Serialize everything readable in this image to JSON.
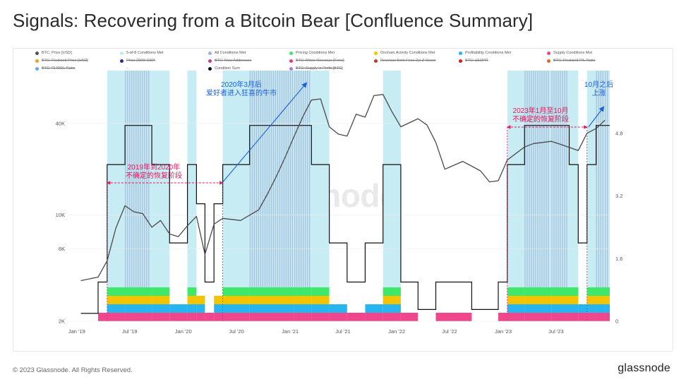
{
  "title": "Signals: Recovering from a Bitcoin Bear [Confluence Summary]",
  "footer": "© 2023 Glassnode. All Rights Reserved.",
  "brand": "glassnode",
  "watermark": "glassnode",
  "legend": [
    {
      "label": "BTC: Price [USD]",
      "color": "#555555",
      "struck": false
    },
    {
      "label": "5-of-8 Conditions Met",
      "color": "#bfeaf3",
      "struck": false
    },
    {
      "label": "All Conditions Met",
      "color": "#9fb4d6",
      "struck": false
    },
    {
      "label": "Pricing Conditions Met",
      "color": "#3de86a",
      "struck": false
    },
    {
      "label": "Onchain Activity Conditions Met",
      "color": "#f5c400",
      "struck": false
    },
    {
      "label": "Profitability Conditions Met",
      "color": "#27b5f0",
      "struck": false
    },
    {
      "label": "Supply Conditions Met",
      "color": "#f0478c",
      "struck": false
    },
    {
      "label": "BTC: Realized Price [USD]",
      "color": "#f29a2e",
      "struck": true
    },
    {
      "label": "Price 200D-SMA",
      "color": "#2a2aa0",
      "struck": true
    },
    {
      "label": "BTC: New Addresses",
      "color": "#c04090",
      "struck": true
    },
    {
      "label": "BTC: Miner Revenue (Fees)",
      "color": "#e0407a",
      "struck": true
    },
    {
      "label": "Revenue from Fees 2yr Z-Score",
      "color": "#c0392b",
      "struck": true
    },
    {
      "label": "BTC: aSOPR",
      "color": "#d42020",
      "struck": true
    },
    {
      "label": "BTC: Realized P/L Ratio",
      "color": "#e06a20",
      "struck": true
    },
    {
      "label": "BTC: RHODL Ratio",
      "color": "#6aa8e0",
      "struck": true
    },
    {
      "label": "-",
      "color": "#ffffff",
      "struck": false
    },
    {
      "label": "Condition Sum",
      "color": "#111111",
      "struck": false
    },
    {
      "label": "BTC: Supply in Profit [BTC]",
      "color": "#b07ad8",
      "struck": true
    }
  ],
  "annotations": {
    "a1": {
      "line1": "2019年到2020年",
      "line2": "不确定的恢复阶段"
    },
    "a2": {
      "line1": "2020年3月后",
      "line2": "爱好者进入狂喜的牛市"
    },
    "a3": {
      "line1": "2023年1月至10月",
      "line2": "不确定的恢复阶段"
    },
    "a4": {
      "line1": "10月之后",
      "line2": "上涨"
    }
  },
  "chart_data": {
    "type": "line",
    "x_ticks": [
      "Jan '19",
      "Jul '19",
      "Jan '20",
      "Jul '20",
      "Jan '21",
      "Jul '21",
      "Jan '22",
      "Jul '22",
      "Jan '23",
      "Jul '23"
    ],
    "y_left_ticks": [
      "40K",
      "10K",
      "6K",
      "2K"
    ],
    "y_left_scale": "log",
    "y_right_ticks": [
      "4.8",
      "3.2",
      "1.6",
      "0"
    ],
    "y_right_range": [
      0,
      6.4
    ],
    "series": [
      {
        "name": "BTC: Price [USD]",
        "dates": [
          "2019-01",
          "2019-03",
          "2019-04",
          "2019-05",
          "2019-06",
          "2019-07",
          "2019-08",
          "2019-09",
          "2019-10",
          "2019-11",
          "2019-12",
          "2020-01",
          "2020-02",
          "2020-03",
          "2020-04",
          "2020-05",
          "2020-07",
          "2020-09",
          "2020-10",
          "2020-11",
          "2020-12",
          "2021-01",
          "2021-02",
          "2021-03",
          "2021-04",
          "2021-05",
          "2021-06",
          "2021-07",
          "2021-08",
          "2021-09",
          "2021-10",
          "2021-11",
          "2021-12",
          "2022-01",
          "2022-03",
          "2022-04",
          "2022-05",
          "2022-06",
          "2022-08",
          "2022-10",
          "2022-11",
          "2022-12",
          "2023-01",
          "2023-03",
          "2023-04",
          "2023-06",
          "2023-07",
          "2023-09",
          "2023-10",
          "2023-11",
          "2023-12"
        ],
        "values": [
          3700,
          3900,
          5000,
          8200,
          11500,
          10500,
          10200,
          8300,
          9200,
          7500,
          7200,
          8500,
          9800,
          5500,
          8700,
          9500,
          9200,
          10800,
          13700,
          18000,
          24000,
          33000,
          45000,
          57000,
          58000,
          38000,
          34000,
          33000,
          46000,
          44000,
          61000,
          62000,
          48000,
          38000,
          43000,
          39000,
          30000,
          20000,
          22500,
          19500,
          16500,
          16800,
          23000,
          28000,
          29500,
          30500,
          29200,
          26500,
          34500,
          37000,
          42000
        ]
      },
      {
        "name": "Condition Sum",
        "dates": [
          "2019-01",
          "2019-03",
          "2019-04",
          "2019-06",
          "2019-09",
          "2019-11",
          "2020-01",
          "2020-02",
          "2020-03",
          "2020-04",
          "2020-05",
          "2020-08",
          "2021-01",
          "2021-03",
          "2021-05",
          "2021-07",
          "2021-09",
          "2021-11",
          "2022-01",
          "2022-03",
          "2022-05",
          "2022-09",
          "2022-12",
          "2023-01",
          "2023-03",
          "2023-06",
          "2023-08",
          "2023-09",
          "2023-10",
          "2023-11",
          "2023-12"
        ],
        "values": [
          0.2,
          1,
          4,
          5,
          4,
          2,
          4,
          3,
          1,
          3,
          4,
          5,
          5,
          4,
          2,
          1,
          2,
          4,
          1,
          0.3,
          1,
          0.3,
          1,
          4,
          5,
          5,
          4,
          2,
          4,
          5,
          5
        ]
      }
    ]
  }
}
